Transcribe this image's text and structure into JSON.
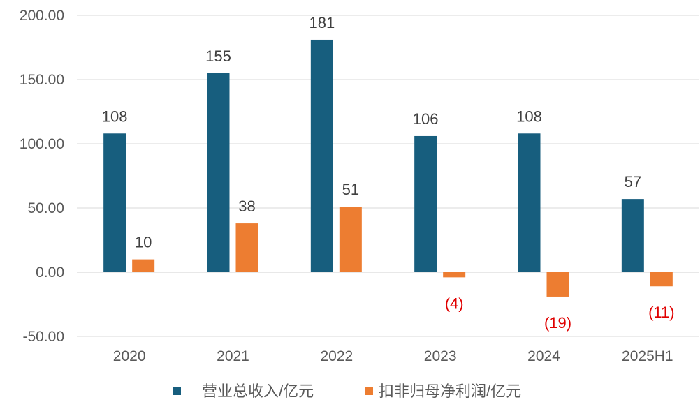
{
  "chart_data": {
    "type": "bar",
    "title": "",
    "xlabel": "",
    "ylabel": "",
    "categories": [
      "2020",
      "2021",
      "2022",
      "2023",
      "2024",
      "2025H1"
    ],
    "series": [
      {
        "name": "营业总收入/亿元",
        "color": "#175E7E",
        "values": [
          108,
          155,
          181,
          106,
          108,
          57
        ],
        "labels": [
          "108",
          "155",
          "181",
          "106",
          "108",
          "57"
        ]
      },
      {
        "name": "扣非归母净利润/亿元",
        "color": "#ED7D31",
        "values": [
          10,
          38,
          51,
          -4,
          -19,
          -11
        ],
        "labels": [
          "10",
          "38",
          "51",
          "(4)",
          "(19)",
          "(11)"
        ]
      }
    ],
    "ylim": [
      -50,
      200
    ],
    "yticks": [
      -50,
      0,
      50,
      100,
      150,
      200
    ],
    "ytick_labels": [
      "-50.00",
      "0.00",
      "50.00",
      "100.00",
      "150.00",
      "200.00"
    ],
    "grid": true,
    "legend_position": "bottom",
    "negative_label_color": "#E00000"
  }
}
